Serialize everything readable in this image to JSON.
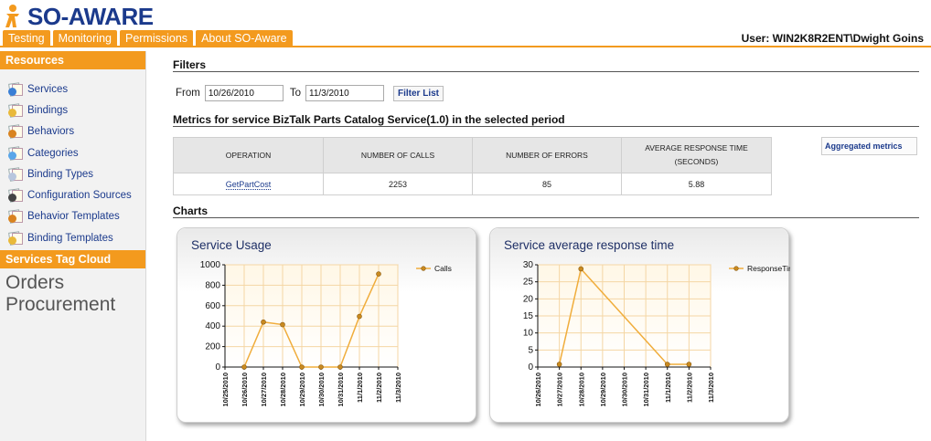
{
  "header": {
    "logo_text": "SO-AWARE",
    "user_label": "User: WIN2K8R2ENT\\Dwight Goins",
    "tabs": [
      {
        "label": "Testing"
      },
      {
        "label": "Monitoring"
      },
      {
        "label": "Permissions"
      },
      {
        "label": "About SO-Aware"
      }
    ]
  },
  "sidebar": {
    "resources_title": "Resources",
    "items": [
      {
        "label": "Services",
        "icon": "services-icon"
      },
      {
        "label": "Bindings",
        "icon": "bindings-icon"
      },
      {
        "label": "Behaviors",
        "icon": "behaviors-icon"
      },
      {
        "label": "Categories",
        "icon": "categories-icon"
      },
      {
        "label": "Binding Types",
        "icon": "binding-types-icon"
      },
      {
        "label": "Configuration Sources",
        "icon": "configuration-sources-icon"
      },
      {
        "label": "Behavior Templates",
        "icon": "behavior-templates-icon"
      },
      {
        "label": "Binding Templates",
        "icon": "binding-templates-icon"
      }
    ],
    "tag_cloud_title": "Services Tag Cloud",
    "tags": [
      "Orders",
      "Procurement"
    ]
  },
  "filters": {
    "title": "Filters",
    "from_label": "From",
    "from_value": "10/26/2010",
    "to_label": "To",
    "to_value": "11/3/2010",
    "button_label": "Filter List"
  },
  "metrics": {
    "title": "Metrics for service BizTalk Parts Catalog Service(1.0) in the selected period",
    "columns": [
      "OPERATION",
      "NUMBER OF CALLS",
      "NUMBER OF ERRORS",
      "AVERAGE RESPONSE TIME",
      "(SECONDS)"
    ],
    "rows": [
      {
        "operation": "GetPartCost",
        "calls": "2253",
        "errors": "85",
        "avg_response": "5.88"
      }
    ],
    "aggregated_label": "Aggregated metrics"
  },
  "charts_title": "Charts",
  "chart_data": [
    {
      "type": "line",
      "title": "Service Usage",
      "categories": [
        "10/25/2010",
        "10/26/2010",
        "10/27/2010",
        "10/28/2010",
        "10/29/2010",
        "10/30/2010",
        "10/31/2010",
        "11/1/2010",
        "11/2/2010",
        "11/3/2010"
      ],
      "series": [
        {
          "name": "Calls",
          "values": [
            null,
            0,
            440,
            415,
            0,
            0,
            0,
            495,
            910,
            null
          ]
        }
      ],
      "ylim": [
        0,
        1000
      ],
      "yticks": [
        0,
        200,
        400,
        600,
        800,
        1000
      ],
      "legend": "top-right",
      "grid": true,
      "color": "#f0ad3c"
    },
    {
      "type": "line",
      "title": "Service average response time",
      "categories": [
        "10/26/2010",
        "10/27/2010",
        "10/28/2010",
        "10/29/2010",
        "10/30/2010",
        "10/31/2010",
        "11/1/2010",
        "11/2/2010",
        "11/3/2010"
      ],
      "series": [
        {
          "name": "ResponseTime",
          "values": [
            null,
            0.8,
            28.8,
            null,
            null,
            null,
            0.8,
            0.8,
            null
          ]
        }
      ],
      "ylim": [
        0,
        30
      ],
      "yticks": [
        0,
        5,
        10,
        15,
        20,
        25,
        30
      ],
      "legend": "top-right",
      "grid": true,
      "color": "#f0ad3c"
    }
  ]
}
